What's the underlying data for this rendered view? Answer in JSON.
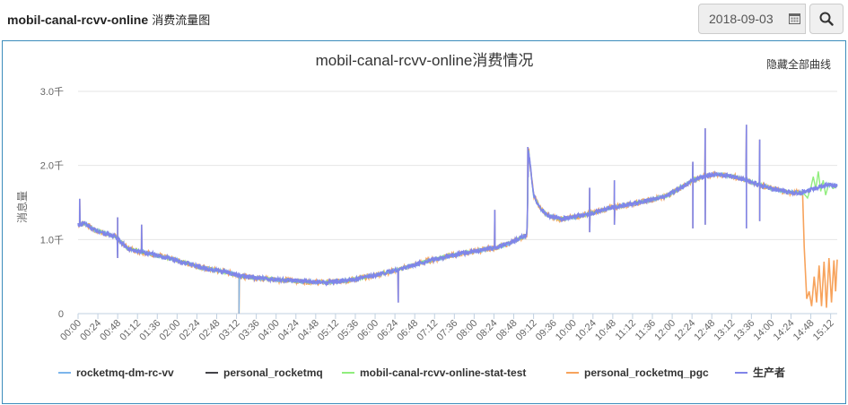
{
  "page": {
    "title_bold": "mobil-canal-rcvv-online",
    "title_rest": " 消费流量图"
  },
  "date_picker": {
    "value": "2018-09-03",
    "icon": "calendar-icon"
  },
  "search_button": {
    "icon": "search-icon"
  },
  "toolbar": {
    "hide_all_label": "隐藏全部曲线"
  },
  "chart_data": {
    "type": "line",
    "title": "mobil-canal-rcvv-online消费情况",
    "ylabel": "消息量",
    "xlabel": "",
    "ylim": [
      0,
      3000
    ],
    "y_ticks": [
      0,
      1000,
      2000,
      3000
    ],
    "y_tick_labels": [
      "0",
      "1.0千",
      "2.0千",
      "3.0千"
    ],
    "x_tick_labels": [
      "00:00",
      "00:24",
      "00:48",
      "01:12",
      "01:36",
      "02:00",
      "02:24",
      "02:48",
      "03:12",
      "03:36",
      "04:00",
      "04:24",
      "04:48",
      "05:12",
      "05:36",
      "06:00",
      "06:24",
      "06:48",
      "07:12",
      "07:36",
      "08:00",
      "08:24",
      "08:48",
      "09:12",
      "09:36",
      "10:00",
      "10:24",
      "10:48",
      "11:12",
      "11:36",
      "12:00",
      "12:24",
      "12:48",
      "13:12",
      "13:36",
      "14:00",
      "14:24",
      "14:48",
      "15:12"
    ],
    "x_range_minutes": [
      0,
      920
    ],
    "grid": "horizontal",
    "legend_position": "bottom",
    "series": [
      {
        "name": "rocketmq-dm-rc-vv",
        "color": "#7cb5ec"
      },
      {
        "name": "personal_rocketmq",
        "color": "#434348"
      },
      {
        "name": "mobil-canal-rcvv-online-stat-test",
        "color": "#90ed7d"
      },
      {
        "name": "personal_rocketmq_pgc",
        "color": "#f7a35c"
      },
      {
        "name": "生产者",
        "color": "#8085e9"
      }
    ],
    "trend_points_minutes_value": [
      [
        0,
        1200
      ],
      [
        8,
        1220
      ],
      [
        20,
        1130
      ],
      [
        45,
        1040
      ],
      [
        60,
        880
      ],
      [
        90,
        800
      ],
      [
        120,
        720
      ],
      [
        150,
        620
      ],
      [
        180,
        560
      ],
      [
        200,
        500
      ],
      [
        220,
        480
      ],
      [
        250,
        450
      ],
      [
        280,
        430
      ],
      [
        300,
        420
      ],
      [
        330,
        450
      ],
      [
        360,
        520
      ],
      [
        390,
        600
      ],
      [
        420,
        700
      ],
      [
        450,
        780
      ],
      [
        480,
        840
      ],
      [
        510,
        900
      ],
      [
        525,
        960
      ],
      [
        540,
        1040
      ],
      [
        544,
        1060
      ],
      [
        546,
        2200
      ],
      [
        552,
        1600
      ],
      [
        560,
        1420
      ],
      [
        570,
        1320
      ],
      [
        585,
        1280
      ],
      [
        600,
        1300
      ],
      [
        620,
        1350
      ],
      [
        650,
        1440
      ],
      [
        680,
        1500
      ],
      [
        700,
        1550
      ],
      [
        715,
        1600
      ],
      [
        730,
        1700
      ],
      [
        745,
        1800
      ],
      [
        760,
        1860
      ],
      [
        775,
        1880
      ],
      [
        790,
        1860
      ],
      [
        805,
        1820
      ],
      [
        820,
        1760
      ],
      [
        840,
        1690
      ],
      [
        860,
        1640
      ],
      [
        878,
        1630
      ],
      [
        895,
        1700
      ],
      [
        910,
        1740
      ],
      [
        920,
        1720
      ]
    ],
    "spikes_minutes_value": [
      [
        2,
        1550
      ],
      [
        48,
        750
      ],
      [
        48,
        1300
      ],
      [
        77,
        1200
      ],
      [
        195,
        0
      ],
      [
        388,
        150
      ],
      [
        505,
        1400
      ],
      [
        545,
        2250
      ],
      [
        620,
        1700
      ],
      [
        620,
        1100
      ],
      [
        650,
        1800
      ],
      [
        650,
        1200
      ],
      [
        705,
        1560
      ],
      [
        745,
        2050
      ],
      [
        745,
        1150
      ],
      [
        760,
        2500
      ],
      [
        760,
        1200
      ],
      [
        810,
        2550
      ],
      [
        810,
        1150
      ],
      [
        826,
        2350
      ],
      [
        826,
        1250
      ],
      [
        878,
        1680
      ]
    ],
    "pgc_tail_minutes_value": [
      [
        878,
        1630
      ],
      [
        880,
        900
      ],
      [
        883,
        200
      ],
      [
        886,
        300
      ],
      [
        889,
        100
      ],
      [
        892,
        500
      ],
      [
        895,
        150
      ],
      [
        898,
        650
      ],
      [
        901,
        100
      ],
      [
        904,
        700
      ],
      [
        907,
        80
      ],
      [
        910,
        750
      ],
      [
        913,
        150
      ],
      [
        916,
        720
      ],
      [
        918,
        300
      ],
      [
        920,
        730
      ]
    ],
    "stat_test_tail_minutes_value": [
      [
        878,
        1640
      ],
      [
        884,
        1560
      ],
      [
        888,
        1700
      ],
      [
        891,
        1850
      ],
      [
        894,
        1680
      ],
      [
        897,
        1920
      ],
      [
        900,
        1650
      ],
      [
        903,
        1800
      ],
      [
        906,
        1600
      ],
      [
        910,
        1760
      ],
      [
        915,
        1690
      ],
      [
        920,
        1720
      ]
    ]
  }
}
